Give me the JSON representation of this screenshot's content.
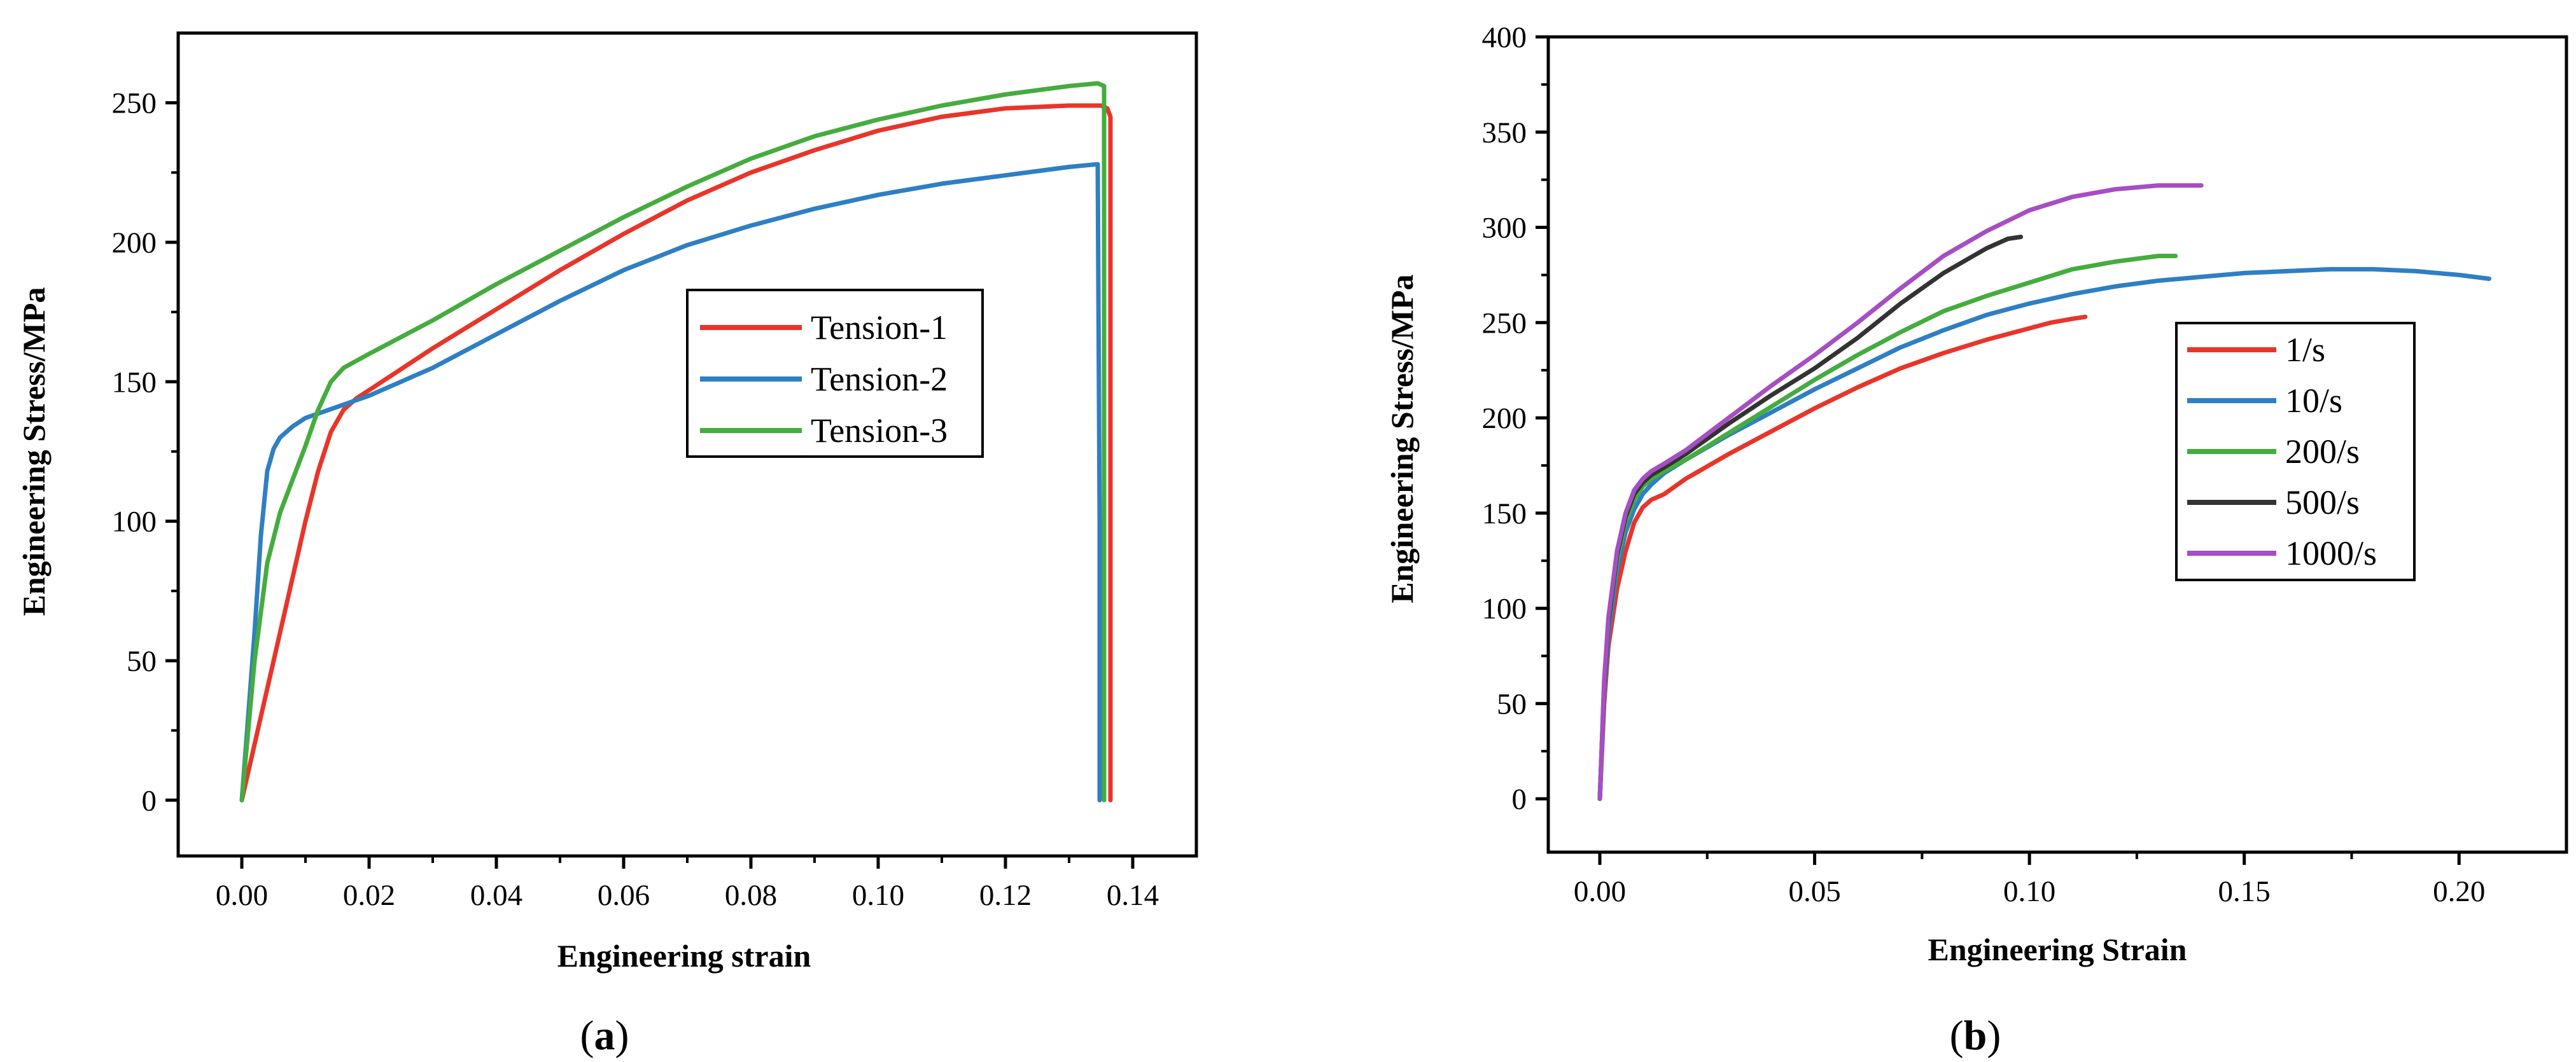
{
  "chart_data": [
    {
      "id": "a",
      "type": "line",
      "caption": "a",
      "xlabel": "Engineering strain",
      "ylabel": "Engineering Stress/MPa",
      "xlim": [
        -0.01,
        0.15
      ],
      "ylim": [
        -20,
        275
      ],
      "xticks": [
        0.0,
        0.02,
        0.04,
        0.06,
        0.08,
        0.1,
        0.12,
        0.14
      ],
      "xtick_labels": [
        "0.00",
        "0.02",
        "0.04",
        "0.06",
        "0.08",
        "0.10",
        "0.12",
        "0.14"
      ],
      "yticks": [
        0,
        50,
        100,
        150,
        200,
        250
      ],
      "ytick_labels": [
        "0",
        "50",
        "100",
        "150",
        "200",
        "250"
      ],
      "legend_position": "center-right",
      "series": [
        {
          "name": "Tension-1",
          "color": "#e8352a",
          "x": [
            0,
            0.002,
            0.004,
            0.006,
            0.008,
            0.01,
            0.012,
            0.014,
            0.016,
            0.018,
            0.02,
            0.03,
            0.04,
            0.05,
            0.06,
            0.07,
            0.08,
            0.09,
            0.1,
            0.11,
            0.12,
            0.13,
            0.135,
            0.136,
            0.1365,
            0.1365,
            0.1365
          ],
          "y": [
            0,
            20,
            40,
            60,
            80,
            100,
            118,
            132,
            140,
            144,
            147,
            162,
            176,
            190,
            203,
            215,
            225,
            233,
            240,
            245,
            248,
            249,
            249,
            248,
            245,
            100,
            0
          ]
        },
        {
          "name": "Tension-2",
          "color": "#2e7fc4",
          "x": [
            0,
            0.001,
            0.002,
            0.003,
            0.004,
            0.005,
            0.006,
            0.008,
            0.01,
            0.015,
            0.02,
            0.03,
            0.04,
            0.05,
            0.06,
            0.07,
            0.08,
            0.09,
            0.1,
            0.11,
            0.12,
            0.13,
            0.1345,
            0.1348,
            0.1348
          ],
          "y": [
            0,
            30,
            60,
            95,
            118,
            126,
            130,
            134,
            137,
            141,
            145,
            155,
            167,
            179,
            190,
            199,
            206,
            212,
            217,
            221,
            224,
            227,
            228,
            100,
            0
          ]
        },
        {
          "name": "Tension-3",
          "color": "#45ac3f",
          "x": [
            0,
            0.002,
            0.004,
            0.006,
            0.008,
            0.01,
            0.012,
            0.014,
            0.016,
            0.02,
            0.03,
            0.04,
            0.05,
            0.06,
            0.07,
            0.08,
            0.09,
            0.1,
            0.11,
            0.12,
            0.13,
            0.1345,
            0.1355,
            0.1355,
            0.1355
          ],
          "y": [
            0,
            50,
            85,
            103,
            115,
            127,
            140,
            150,
            155,
            160,
            172,
            185,
            197,
            209,
            220,
            230,
            238,
            244,
            249,
            253,
            256,
            257,
            256,
            100,
            0
          ]
        }
      ]
    },
    {
      "id": "b",
      "type": "line",
      "caption": "b",
      "xlabel": "Engineering Strain",
      "ylabel": "Engineering Stress/MPa",
      "xlim": [
        -0.012,
        0.225
      ],
      "ylim": [
        -28,
        400
      ],
      "xticks": [
        0.0,
        0.05,
        0.1,
        0.15,
        0.2
      ],
      "xtick_labels": [
        "0.00",
        "0.05",
        "0.10",
        "0.15",
        "0.20"
      ],
      "yticks": [
        0,
        50,
        100,
        150,
        200,
        250,
        300,
        350,
        400
      ],
      "ytick_labels": [
        "0",
        "50",
        "100",
        "150",
        "200",
        "250",
        "300",
        "350",
        "400"
      ],
      "legend_position": "center-right",
      "series": [
        {
          "name": "1/s",
          "color": "#e8352a",
          "x": [
            0,
            0.001,
            0.002,
            0.004,
            0.006,
            0.008,
            0.01,
            0.012,
            0.015,
            0.02,
            0.03,
            0.04,
            0.05,
            0.06,
            0.07,
            0.08,
            0.09,
            0.1,
            0.105,
            0.11,
            0.113
          ],
          "y": [
            0,
            50,
            80,
            110,
            130,
            145,
            153,
            157,
            160,
            168,
            181,
            193,
            205,
            216,
            226,
            234,
            241,
            247,
            250,
            252,
            253
          ]
        },
        {
          "name": "10/s",
          "color": "#2e7fc4",
          "x": [
            0,
            0.001,
            0.002,
            0.004,
            0.006,
            0.008,
            0.01,
            0.012,
            0.015,
            0.02,
            0.03,
            0.04,
            0.05,
            0.06,
            0.07,
            0.08,
            0.09,
            0.1,
            0.11,
            0.12,
            0.13,
            0.14,
            0.15,
            0.16,
            0.17,
            0.18,
            0.19,
            0.2,
            0.207
          ],
          "y": [
            0,
            55,
            85,
            120,
            140,
            152,
            160,
            165,
            171,
            178,
            191,
            203,
            215,
            226,
            237,
            246,
            254,
            260,
            265,
            269,
            272,
            274,
            276,
            277,
            278,
            278,
            277,
            275,
            273
          ]
        },
        {
          "name": "200/s",
          "color": "#45ac3f",
          "x": [
            0,
            0.001,
            0.002,
            0.004,
            0.006,
            0.008,
            0.01,
            0.012,
            0.015,
            0.02,
            0.03,
            0.04,
            0.05,
            0.06,
            0.07,
            0.08,
            0.09,
            0.1,
            0.11,
            0.12,
            0.13,
            0.134
          ],
          "y": [
            0,
            60,
            90,
            125,
            145,
            157,
            164,
            168,
            172,
            178,
            192,
            206,
            220,
            233,
            245,
            256,
            264,
            271,
            278,
            282,
            285,
            285
          ]
        },
        {
          "name": "500/s",
          "color": "#333333",
          "x": [
            0,
            0.001,
            0.002,
            0.004,
            0.006,
            0.008,
            0.01,
            0.012,
            0.015,
            0.02,
            0.03,
            0.04,
            0.05,
            0.06,
            0.07,
            0.08,
            0.09,
            0.095,
            0.098
          ],
          "y": [
            0,
            60,
            92,
            128,
            148,
            160,
            166,
            170,
            174,
            181,
            197,
            212,
            226,
            242,
            260,
            276,
            289,
            294,
            295
          ]
        },
        {
          "name": "1000/s",
          "color": "#a64ec3",
          "x": [
            0,
            0.001,
            0.002,
            0.004,
            0.006,
            0.008,
            0.01,
            0.012,
            0.015,
            0.02,
            0.03,
            0.04,
            0.05,
            0.06,
            0.07,
            0.08,
            0.09,
            0.1,
            0.11,
            0.12,
            0.13,
            0.135,
            0.14
          ],
          "y": [
            0,
            62,
            95,
            130,
            150,
            162,
            168,
            172,
            176,
            183,
            200,
            217,
            233,
            250,
            268,
            285,
            298,
            309,
            316,
            320,
            322,
            322,
            322
          ]
        }
      ]
    }
  ]
}
